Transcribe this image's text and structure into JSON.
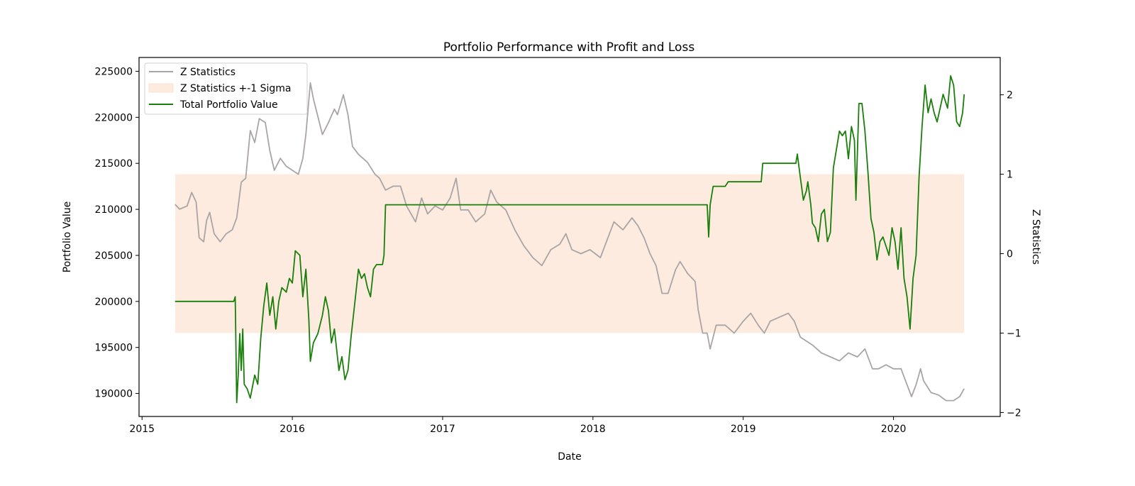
{
  "chart_data": {
    "type": "line",
    "title": "Portfolio Performance with Profit and Loss",
    "xlabel": "Date",
    "ylabel_left": "Portfolio Value",
    "ylabel_right": "Z Statistics",
    "x_ticks": [
      "2015",
      "2016",
      "2017",
      "2018",
      "2019",
      "2020"
    ],
    "xlim": [
      2014.98,
      2020.71
    ],
    "ylim_left": [
      187500,
      226500
    ],
    "ylim_right": [
      -2.05,
      2.47
    ],
    "y_ticks_left": [
      190000,
      195000,
      200000,
      205000,
      210000,
      215000,
      220000,
      225000
    ],
    "y_ticks_right": [
      -2,
      -1,
      0,
      1,
      2
    ],
    "grid": false,
    "legend_position": "top-left",
    "legend": [
      {
        "name": "Z Statistics",
        "kind": "line",
        "color": "#aaa5a5"
      },
      {
        "name": "Z Statistics +-1 Sigma",
        "kind": "band",
        "color": "#fdebe0"
      },
      {
        "name": "Total Portfolio Value",
        "kind": "line",
        "color": "#1a7f0a"
      }
    ],
    "band": {
      "axis": "right",
      "x_start": 2015.22,
      "x_end": 2020.47,
      "y_low": -1,
      "y_high": 1
    },
    "series": [
      {
        "name": "Z Statistics",
        "axis": "right",
        "color": "#aaa5a5",
        "points": [
          [
            2015.22,
            0.62
          ],
          [
            2015.25,
            0.56
          ],
          [
            2015.3,
            0.6
          ],
          [
            2015.33,
            0.77
          ],
          [
            2015.36,
            0.65
          ],
          [
            2015.38,
            0.2
          ],
          [
            2015.41,
            0.15
          ],
          [
            2015.43,
            0.42
          ],
          [
            2015.45,
            0.52
          ],
          [
            2015.48,
            0.25
          ],
          [
            2015.52,
            0.15
          ],
          [
            2015.56,
            0.25
          ],
          [
            2015.6,
            0.3
          ],
          [
            2015.63,
            0.45
          ],
          [
            2015.66,
            0.9
          ],
          [
            2015.69,
            0.95
          ],
          [
            2015.72,
            1.55
          ],
          [
            2015.75,
            1.4
          ],
          [
            2015.78,
            1.7
          ],
          [
            2015.82,
            1.65
          ],
          [
            2015.85,
            1.3
          ],
          [
            2015.88,
            1.05
          ],
          [
            2015.92,
            1.2
          ],
          [
            2015.96,
            1.1
          ],
          [
            2016.0,
            1.05
          ],
          [
            2016.04,
            1.0
          ],
          [
            2016.07,
            1.2
          ],
          [
            2016.09,
            1.5
          ],
          [
            2016.12,
            2.15
          ],
          [
            2016.14,
            1.95
          ],
          [
            2016.16,
            1.8
          ],
          [
            2016.2,
            1.5
          ],
          [
            2016.24,
            1.65
          ],
          [
            2016.28,
            1.82
          ],
          [
            2016.3,
            1.75
          ],
          [
            2016.34,
            2.0
          ],
          [
            2016.37,
            1.75
          ],
          [
            2016.4,
            1.35
          ],
          [
            2016.44,
            1.25
          ],
          [
            2016.47,
            1.2
          ],
          [
            2016.5,
            1.15
          ],
          [
            2016.55,
            1.0
          ],
          [
            2016.58,
            0.95
          ],
          [
            2016.62,
            0.8
          ],
          [
            2016.67,
            0.85
          ],
          [
            2016.72,
            0.85
          ],
          [
            2016.76,
            0.6
          ],
          [
            2016.82,
            0.4
          ],
          [
            2016.86,
            0.7
          ],
          [
            2016.9,
            0.5
          ],
          [
            2016.95,
            0.6
          ],
          [
            2017.0,
            0.55
          ],
          [
            2017.05,
            0.7
          ],
          [
            2017.09,
            0.95
          ],
          [
            2017.12,
            0.55
          ],
          [
            2017.17,
            0.55
          ],
          [
            2017.22,
            0.4
          ],
          [
            2017.28,
            0.5
          ],
          [
            2017.32,
            0.8
          ],
          [
            2017.36,
            0.65
          ],
          [
            2017.42,
            0.55
          ],
          [
            2017.48,
            0.3
          ],
          [
            2017.54,
            0.1
          ],
          [
            2017.6,
            -0.05
          ],
          [
            2017.66,
            -0.15
          ],
          [
            2017.72,
            0.05
          ],
          [
            2017.78,
            0.12
          ],
          [
            2017.82,
            0.25
          ],
          [
            2017.86,
            0.05
          ],
          [
            2017.92,
            0.0
          ],
          [
            2017.98,
            0.05
          ],
          [
            2018.05,
            -0.05
          ],
          [
            2018.1,
            0.2
          ],
          [
            2018.14,
            0.4
          ],
          [
            2018.2,
            0.3
          ],
          [
            2018.26,
            0.45
          ],
          [
            2018.3,
            0.35
          ],
          [
            2018.34,
            0.2
          ],
          [
            2018.38,
            0.0
          ],
          [
            2018.42,
            -0.15
          ],
          [
            2018.46,
            -0.5
          ],
          [
            2018.5,
            -0.5
          ],
          [
            2018.55,
            -0.2
          ],
          [
            2018.58,
            -0.1
          ],
          [
            2018.63,
            -0.25
          ],
          [
            2018.68,
            -0.35
          ],
          [
            2018.7,
            -0.7
          ],
          [
            2018.73,
            -1.0
          ],
          [
            2018.76,
            -1.0
          ],
          [
            2018.78,
            -1.2
          ],
          [
            2018.82,
            -0.9
          ],
          [
            2018.88,
            -0.9
          ],
          [
            2018.94,
            -1.0
          ],
          [
            2019.0,
            -0.85
          ],
          [
            2019.05,
            -0.75
          ],
          [
            2019.1,
            -0.9
          ],
          [
            2019.14,
            -1.0
          ],
          [
            2019.18,
            -0.85
          ],
          [
            2019.24,
            -0.8
          ],
          [
            2019.3,
            -0.75
          ],
          [
            2019.34,
            -0.85
          ],
          [
            2019.38,
            -1.05
          ],
          [
            2019.42,
            -1.1
          ],
          [
            2019.46,
            -1.15
          ],
          [
            2019.52,
            -1.25
          ],
          [
            2019.58,
            -1.3
          ],
          [
            2019.64,
            -1.35
          ],
          [
            2019.7,
            -1.25
          ],
          [
            2019.76,
            -1.3
          ],
          [
            2019.81,
            -1.2
          ],
          [
            2019.86,
            -1.45
          ],
          [
            2019.9,
            -1.45
          ],
          [
            2019.95,
            -1.4
          ],
          [
            2020.0,
            -1.45
          ],
          [
            2020.05,
            -1.45
          ],
          [
            2020.08,
            -1.6
          ],
          [
            2020.12,
            -1.8
          ],
          [
            2020.15,
            -1.65
          ],
          [
            2020.18,
            -1.45
          ],
          [
            2020.2,
            -1.6
          ],
          [
            2020.25,
            -1.75
          ],
          [
            2020.3,
            -1.78
          ],
          [
            2020.35,
            -1.85
          ],
          [
            2020.4,
            -1.85
          ],
          [
            2020.44,
            -1.8
          ],
          [
            2020.47,
            -1.7
          ]
        ]
      },
      {
        "name": "Total Portfolio Value",
        "axis": "left",
        "color": "#1a7f0a",
        "points": [
          [
            2015.22,
            200000
          ],
          [
            2015.61,
            200000
          ],
          [
            2015.62,
            200500
          ],
          [
            2015.63,
            189000
          ],
          [
            2015.64,
            192000
          ],
          [
            2015.65,
            196500
          ],
          [
            2015.66,
            192500
          ],
          [
            2015.67,
            197000
          ],
          [
            2015.68,
            191000
          ],
          [
            2015.7,
            190500
          ],
          [
            2015.72,
            189500
          ],
          [
            2015.75,
            192000
          ],
          [
            2015.77,
            191000
          ],
          [
            2015.79,
            196000
          ],
          [
            2015.81,
            199500
          ],
          [
            2015.83,
            202000
          ],
          [
            2015.85,
            198500
          ],
          [
            2015.87,
            200500
          ],
          [
            2015.89,
            197000
          ],
          [
            2015.91,
            200000
          ],
          [
            2015.93,
            201500
          ],
          [
            2015.96,
            201000
          ],
          [
            2015.98,
            202500
          ],
          [
            2016.0,
            202000
          ],
          [
            2016.02,
            205500
          ],
          [
            2016.05,
            205000
          ],
          [
            2016.07,
            200500
          ],
          [
            2016.09,
            203500
          ],
          [
            2016.11,
            198000
          ],
          [
            2016.12,
            193500
          ],
          [
            2016.14,
            195500
          ],
          [
            2016.17,
            196500
          ],
          [
            2016.2,
            198500
          ],
          [
            2016.22,
            200500
          ],
          [
            2016.24,
            199000
          ],
          [
            2016.26,
            195500
          ],
          [
            2016.28,
            197000
          ],
          [
            2016.31,
            192500
          ],
          [
            2016.33,
            194000
          ],
          [
            2016.35,
            191500
          ],
          [
            2016.37,
            192500
          ],
          [
            2016.39,
            196000
          ],
          [
            2016.42,
            200500
          ],
          [
            2016.44,
            203500
          ],
          [
            2016.46,
            202500
          ],
          [
            2016.48,
            203000
          ],
          [
            2016.5,
            201500
          ],
          [
            2016.52,
            200500
          ],
          [
            2016.54,
            203500
          ],
          [
            2016.56,
            204000
          ],
          [
            2016.6,
            204000
          ],
          [
            2016.61,
            205000
          ],
          [
            2016.62,
            210500
          ],
          [
            2018.76,
            210500
          ],
          [
            2018.77,
            207000
          ],
          [
            2018.78,
            210500
          ],
          [
            2018.8,
            212500
          ],
          [
            2018.88,
            212500
          ],
          [
            2018.9,
            213000
          ],
          [
            2019.12,
            213000
          ],
          [
            2019.13,
            215000
          ],
          [
            2019.35,
            215000
          ],
          [
            2019.36,
            216000
          ],
          [
            2019.38,
            213500
          ],
          [
            2019.4,
            211000
          ],
          [
            2019.42,
            212000
          ],
          [
            2019.43,
            213000
          ],
          [
            2019.45,
            210500
          ],
          [
            2019.46,
            208500
          ],
          [
            2019.48,
            208000
          ],
          [
            2019.5,
            206500
          ],
          [
            2019.52,
            209500
          ],
          [
            2019.54,
            210000
          ],
          [
            2019.56,
            206500
          ],
          [
            2019.58,
            207500
          ],
          [
            2019.6,
            214500
          ],
          [
            2019.62,
            216500
          ],
          [
            2019.64,
            218500
          ],
          [
            2019.66,
            218000
          ],
          [
            2019.68,
            218500
          ],
          [
            2019.7,
            215500
          ],
          [
            2019.72,
            219000
          ],
          [
            2019.74,
            217500
          ],
          [
            2019.75,
            211000
          ],
          [
            2019.77,
            221500
          ],
          [
            2019.79,
            221500
          ],
          [
            2019.81,
            218500
          ],
          [
            2019.83,
            214000
          ],
          [
            2019.85,
            209000
          ],
          [
            2019.87,
            207500
          ],
          [
            2019.89,
            204500
          ],
          [
            2019.91,
            206500
          ],
          [
            2019.93,
            207000
          ],
          [
            2019.95,
            206000
          ],
          [
            2019.97,
            205000
          ],
          [
            2019.99,
            208000
          ],
          [
            2020.01,
            206500
          ],
          [
            2020.03,
            203500
          ],
          [
            2020.05,
            208000
          ],
          [
            2020.07,
            202500
          ],
          [
            2020.09,
            200500
          ],
          [
            2020.11,
            197000
          ],
          [
            2020.13,
            202500
          ],
          [
            2020.15,
            205000
          ],
          [
            2020.17,
            213500
          ],
          [
            2020.19,
            219000
          ],
          [
            2020.21,
            223500
          ],
          [
            2020.23,
            220500
          ],
          [
            2020.25,
            222000
          ],
          [
            2020.27,
            220500
          ],
          [
            2020.29,
            219500
          ],
          [
            2020.31,
            221000
          ],
          [
            2020.33,
            222500
          ],
          [
            2020.36,
            221000
          ],
          [
            2020.38,
            224500
          ],
          [
            2020.4,
            223500
          ],
          [
            2020.42,
            219500
          ],
          [
            2020.44,
            219000
          ],
          [
            2020.46,
            220500
          ],
          [
            2020.47,
            222500
          ]
        ]
      }
    ]
  }
}
